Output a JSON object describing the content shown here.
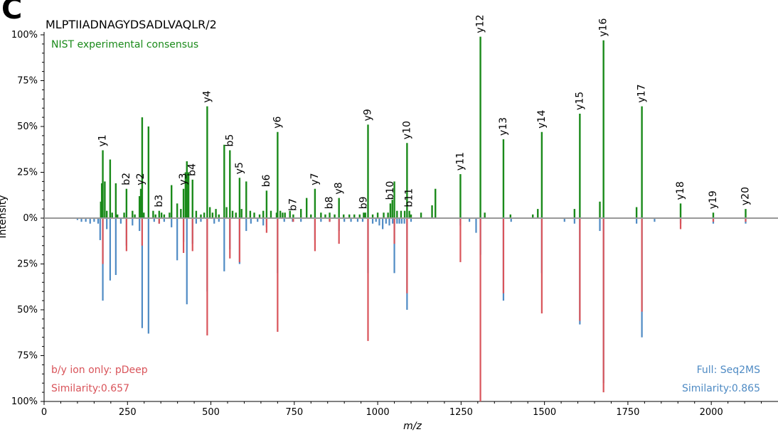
{
  "panel_label": "C",
  "chart_data": {
    "type": "bar",
    "title": "MLPTIIADNAGYDSADLVAQLR/2",
    "top_series_label": "NIST experimental consensus",
    "xlabel": "m/z",
    "ylabel": "Intensity",
    "xlim": [
      0,
      2200
    ],
    "ylim": [
      -100,
      100
    ],
    "x_ticks": [
      0,
      250,
      500,
      750,
      1000,
      1250,
      1500,
      1750,
      2000
    ],
    "y_tick_labels": [
      "100%",
      "75%",
      "50%",
      "25%",
      "0%",
      "25%",
      "50%",
      "75%",
      "100%"
    ],
    "colors": {
      "experimental": "#1a8a1a",
      "pdeep": "#d9545a",
      "seq2ms": "#4f8bc4",
      "baseline": "#999999"
    },
    "legends": {
      "pdeep_name": "b/y ion only: pDeep",
      "pdeep_similarity": "Similarity:0.657",
      "seq2ms_name": "Full: Seq2MS",
      "seq2ms_similarity": "Similarity:0.865"
    },
    "experimental_peaks": [
      {
        "x": 170,
        "y": 9
      },
      {
        "x": 173,
        "y": 19
      },
      {
        "x": 176,
        "y": 37
      },
      {
        "x": 182,
        "y": 20
      },
      {
        "x": 188,
        "y": 4
      },
      {
        "x": 198,
        "y": 32
      },
      {
        "x": 204,
        "y": 3
      },
      {
        "x": 215,
        "y": 19
      },
      {
        "x": 220,
        "y": 2
      },
      {
        "x": 240,
        "y": 3
      },
      {
        "x": 247,
        "y": 16
      },
      {
        "x": 265,
        "y": 4
      },
      {
        "x": 272,
        "y": 2
      },
      {
        "x": 286,
        "y": 12
      },
      {
        "x": 290,
        "y": 16
      },
      {
        "x": 294,
        "y": 55
      },
      {
        "x": 299,
        "y": 3
      },
      {
        "x": 313,
        "y": 50
      },
      {
        "x": 327,
        "y": 4
      },
      {
        "x": 334,
        "y": 2
      },
      {
        "x": 345,
        "y": 4
      },
      {
        "x": 352,
        "y": 3
      },
      {
        "x": 360,
        "y": 2
      },
      {
        "x": 376,
        "y": 3
      },
      {
        "x": 382,
        "y": 18
      },
      {
        "x": 399,
        "y": 8
      },
      {
        "x": 410,
        "y": 5
      },
      {
        "x": 418,
        "y": 16
      },
      {
        "x": 424,
        "y": 25
      },
      {
        "x": 428,
        "y": 31
      },
      {
        "x": 433,
        "y": 25
      },
      {
        "x": 445,
        "y": 21
      },
      {
        "x": 456,
        "y": 4
      },
      {
        "x": 470,
        "y": 2
      },
      {
        "x": 480,
        "y": 3
      },
      {
        "x": 489,
        "y": 61
      },
      {
        "x": 497,
        "y": 6
      },
      {
        "x": 505,
        "y": 3
      },
      {
        "x": 515,
        "y": 5
      },
      {
        "x": 524,
        "y": 2
      },
      {
        "x": 540,
        "y": 40
      },
      {
        "x": 547,
        "y": 6
      },
      {
        "x": 557,
        "y": 37
      },
      {
        "x": 565,
        "y": 4
      },
      {
        "x": 575,
        "y": 3
      },
      {
        "x": 586,
        "y": 22
      },
      {
        "x": 592,
        "y": 5
      },
      {
        "x": 606,
        "y": 20
      },
      {
        "x": 618,
        "y": 4
      },
      {
        "x": 630,
        "y": 3
      },
      {
        "x": 646,
        "y": 2
      },
      {
        "x": 657,
        "y": 4
      },
      {
        "x": 667,
        "y": 15
      },
      {
        "x": 680,
        "y": 4
      },
      {
        "x": 697,
        "y": 3
      },
      {
        "x": 700,
        "y": 47
      },
      {
        "x": 708,
        "y": 4
      },
      {
        "x": 715,
        "y": 3
      },
      {
        "x": 722,
        "y": 3
      },
      {
        "x": 737,
        "y": 4
      },
      {
        "x": 747,
        "y": 2
      },
      {
        "x": 770,
        "y": 5
      },
      {
        "x": 787,
        "y": 11
      },
      {
        "x": 800,
        "y": 2
      },
      {
        "x": 812,
        "y": 16
      },
      {
        "x": 830,
        "y": 3
      },
      {
        "x": 843,
        "y": 2
      },
      {
        "x": 856,
        "y": 3
      },
      {
        "x": 871,
        "y": 2
      },
      {
        "x": 884,
        "y": 11
      },
      {
        "x": 898,
        "y": 2
      },
      {
        "x": 915,
        "y": 2
      },
      {
        "x": 930,
        "y": 2
      },
      {
        "x": 946,
        "y": 2
      },
      {
        "x": 958,
        "y": 3
      },
      {
        "x": 963,
        "y": 3
      },
      {
        "x": 971,
        "y": 51
      },
      {
        "x": 985,
        "y": 2
      },
      {
        "x": 1000,
        "y": 3
      },
      {
        "x": 1018,
        "y": 3
      },
      {
        "x": 1031,
        "y": 3
      },
      {
        "x": 1038,
        "y": 8
      },
      {
        "x": 1044,
        "y": 10
      },
      {
        "x": 1050,
        "y": 20
      },
      {
        "x": 1058,
        "y": 4
      },
      {
        "x": 1070,
        "y": 4
      },
      {
        "x": 1081,
        "y": 4
      },
      {
        "x": 1088,
        "y": 41
      },
      {
        "x": 1095,
        "y": 4
      },
      {
        "x": 1100,
        "y": 2
      },
      {
        "x": 1130,
        "y": 3
      },
      {
        "x": 1163,
        "y": 7
      },
      {
        "x": 1173,
        "y": 16
      },
      {
        "x": 1248,
        "y": 24
      },
      {
        "x": 1308,
        "y": 99
      },
      {
        "x": 1321,
        "y": 3
      },
      {
        "x": 1377,
        "y": 43
      },
      {
        "x": 1398,
        "y": 2
      },
      {
        "x": 1465,
        "y": 2
      },
      {
        "x": 1480,
        "y": 5
      },
      {
        "x": 1492,
        "y": 47
      },
      {
        "x": 1590,
        "y": 5
      },
      {
        "x": 1606,
        "y": 57
      },
      {
        "x": 1666,
        "y": 9
      },
      {
        "x": 1677,
        "y": 97
      },
      {
        "x": 1776,
        "y": 6
      },
      {
        "x": 1792,
        "y": 61
      },
      {
        "x": 1908,
        "y": 8
      },
      {
        "x": 2006,
        "y": 3
      },
      {
        "x": 2103,
        "y": 5
      }
    ],
    "seq2ms_peaks": [
      {
        "x": 100,
        "y": 1
      },
      {
        "x": 112,
        "y": 2
      },
      {
        "x": 125,
        "y": 2
      },
      {
        "x": 138,
        "y": 3
      },
      {
        "x": 150,
        "y": 2
      },
      {
        "x": 162,
        "y": 3
      },
      {
        "x": 168,
        "y": 12
      },
      {
        "x": 176,
        "y": 45
      },
      {
        "x": 188,
        "y": 6
      },
      {
        "x": 198,
        "y": 34
      },
      {
        "x": 215,
        "y": 31
      },
      {
        "x": 230,
        "y": 3
      },
      {
        "x": 247,
        "y": 15
      },
      {
        "x": 265,
        "y": 4
      },
      {
        "x": 286,
        "y": 7
      },
      {
        "x": 294,
        "y": 60
      },
      {
        "x": 313,
        "y": 63
      },
      {
        "x": 330,
        "y": 2
      },
      {
        "x": 345,
        "y": 3
      },
      {
        "x": 360,
        "y": 2
      },
      {
        "x": 382,
        "y": 5
      },
      {
        "x": 399,
        "y": 23
      },
      {
        "x": 418,
        "y": 13
      },
      {
        "x": 428,
        "y": 47
      },
      {
        "x": 445,
        "y": 14
      },
      {
        "x": 456,
        "y": 3
      },
      {
        "x": 470,
        "y": 2
      },
      {
        "x": 489,
        "y": 40
      },
      {
        "x": 510,
        "y": 3
      },
      {
        "x": 524,
        "y": 2
      },
      {
        "x": 540,
        "y": 29
      },
      {
        "x": 557,
        "y": 17
      },
      {
        "x": 586,
        "y": 25
      },
      {
        "x": 606,
        "y": 7
      },
      {
        "x": 620,
        "y": 3
      },
      {
        "x": 640,
        "y": 2
      },
      {
        "x": 657,
        "y": 4
      },
      {
        "x": 667,
        "y": 5
      },
      {
        "x": 700,
        "y": 30
      },
      {
        "x": 720,
        "y": 2
      },
      {
        "x": 745,
        "y": 2
      },
      {
        "x": 770,
        "y": 2
      },
      {
        "x": 812,
        "y": 12
      },
      {
        "x": 830,
        "y": 2
      },
      {
        "x": 856,
        "y": 2
      },
      {
        "x": 884,
        "y": 7
      },
      {
        "x": 900,
        "y": 2
      },
      {
        "x": 920,
        "y": 2
      },
      {
        "x": 940,
        "y": 2
      },
      {
        "x": 955,
        "y": 2
      },
      {
        "x": 971,
        "y": 30
      },
      {
        "x": 985,
        "y": 3
      },
      {
        "x": 995,
        "y": 2
      },
      {
        "x": 1005,
        "y": 4
      },
      {
        "x": 1015,
        "y": 6
      },
      {
        "x": 1025,
        "y": 3
      },
      {
        "x": 1035,
        "y": 4
      },
      {
        "x": 1045,
        "y": 3
      },
      {
        "x": 1050,
        "y": 30
      },
      {
        "x": 1058,
        "y": 3
      },
      {
        "x": 1065,
        "y": 3
      },
      {
        "x": 1072,
        "y": 3
      },
      {
        "x": 1080,
        "y": 3
      },
      {
        "x": 1088,
        "y": 50
      },
      {
        "x": 1100,
        "y": 2
      },
      {
        "x": 1248,
        "y": 4
      },
      {
        "x": 1275,
        "y": 2
      },
      {
        "x": 1295,
        "y": 8
      },
      {
        "x": 1308,
        "y": 20
      },
      {
        "x": 1377,
        "y": 45
      },
      {
        "x": 1400,
        "y": 2
      },
      {
        "x": 1492,
        "y": 30
      },
      {
        "x": 1560,
        "y": 2
      },
      {
        "x": 1590,
        "y": 3
      },
      {
        "x": 1606,
        "y": 58
      },
      {
        "x": 1666,
        "y": 7
      },
      {
        "x": 1677,
        "y": 90
      },
      {
        "x": 1776,
        "y": 3
      },
      {
        "x": 1792,
        "y": 65
      },
      {
        "x": 1830,
        "y": 2
      },
      {
        "x": 1908,
        "y": 3
      },
      {
        "x": 2006,
        "y": 3
      },
      {
        "x": 2103,
        "y": 3
      }
    ],
    "pdeep_peaks": [
      {
        "x": 176,
        "y": 25
      },
      {
        "x": 247,
        "y": 18
      },
      {
        "x": 294,
        "y": 15
      },
      {
        "x": 345,
        "y": 3
      },
      {
        "x": 418,
        "y": 19
      },
      {
        "x": 445,
        "y": 18
      },
      {
        "x": 489,
        "y": 64
      },
      {
        "x": 557,
        "y": 22
      },
      {
        "x": 586,
        "y": 24
      },
      {
        "x": 667,
        "y": 8
      },
      {
        "x": 700,
        "y": 62
      },
      {
        "x": 747,
        "y": 2
      },
      {
        "x": 812,
        "y": 18
      },
      {
        "x": 856,
        "y": 2
      },
      {
        "x": 884,
        "y": 14
      },
      {
        "x": 971,
        "y": 67
      },
      {
        "x": 1050,
        "y": 14
      },
      {
        "x": 1088,
        "y": 41
      },
      {
        "x": 1248,
        "y": 24
      },
      {
        "x": 1308,
        "y": 100
      },
      {
        "x": 1377,
        "y": 41
      },
      {
        "x": 1492,
        "y": 52
      },
      {
        "x": 1606,
        "y": 56
      },
      {
        "x": 1677,
        "y": 95
      },
      {
        "x": 1792,
        "y": 51
      },
      {
        "x": 1908,
        "y": 6
      },
      {
        "x": 2006,
        "y": 2
      },
      {
        "x": 2103,
        "y": 2
      }
    ],
    "ion_labels": [
      {
        "label": "y1",
        "x": 176,
        "y": 37
      },
      {
        "label": "b2",
        "x": 247,
        "y": 16
      },
      {
        "label": "y2",
        "x": 290,
        "y": 16
      },
      {
        "label": "b3",
        "x": 345,
        "y": 4
      },
      {
        "label": "y3",
        "x": 418,
        "y": 16
      },
      {
        "label": "b4",
        "x": 445,
        "y": 21
      },
      {
        "label": "y4",
        "x": 489,
        "y": 61
      },
      {
        "label": "b5",
        "x": 557,
        "y": 37
      },
      {
        "label": "y5",
        "x": 586,
        "y": 22
      },
      {
        "label": "b6",
        "x": 667,
        "y": 15
      },
      {
        "label": "y6",
        "x": 700,
        "y": 47
      },
      {
        "label": "b7",
        "x": 747,
        "y": 2
      },
      {
        "label": "y7",
        "x": 812,
        "y": 16
      },
      {
        "label": "b8",
        "x": 856,
        "y": 3
      },
      {
        "label": "y8",
        "x": 884,
        "y": 11
      },
      {
        "label": "b9",
        "x": 958,
        "y": 3
      },
      {
        "label": "y9",
        "x": 971,
        "y": 51
      },
      {
        "label": "b10",
        "x": 1038,
        "y": 8
      },
      {
        "label": "y10",
        "x": 1088,
        "y": 41
      },
      {
        "label": "b11",
        "x": 1095,
        "y": 4
      },
      {
        "label": "y11",
        "x": 1248,
        "y": 24
      },
      {
        "label": "y12",
        "x": 1308,
        "y": 99
      },
      {
        "label": "y13",
        "x": 1377,
        "y": 43
      },
      {
        "label": "y14",
        "x": 1492,
        "y": 47
      },
      {
        "label": "y15",
        "x": 1606,
        "y": 57
      },
      {
        "label": "y16",
        "x": 1677,
        "y": 97
      },
      {
        "label": "y17",
        "x": 1792,
        "y": 61
      },
      {
        "label": "y18",
        "x": 1908,
        "y": 8
      },
      {
        "label": "y19",
        "x": 2006,
        "y": 3
      },
      {
        "label": "y20",
        "x": 2103,
        "y": 5
      }
    ]
  }
}
